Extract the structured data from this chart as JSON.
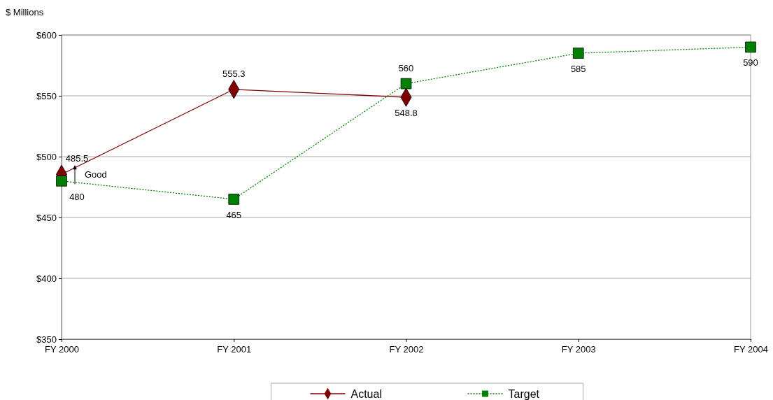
{
  "chart_data": {
    "type": "line",
    "ylabel": "$ Millions",
    "categories": [
      "FY 2000",
      "FY 2001",
      "FY 2002",
      "FY 2003",
      "FY 2004"
    ],
    "series": [
      {
        "name": "Actual",
        "color": "#800000",
        "marker": "diamond",
        "line_style": "solid",
        "values": [
          485.5,
          555.3,
          548.8,
          null,
          null
        ]
      },
      {
        "name": "Target",
        "color": "#008000",
        "marker": "square",
        "line_style": "dotted",
        "values": [
          480,
          465,
          560,
          585,
          590
        ]
      }
    ],
    "ylim": [
      350,
      600
    ],
    "yticks": [
      {
        "value": 350,
        "label": "$350"
      },
      {
        "value": 400,
        "label": "$400"
      },
      {
        "value": 450,
        "label": "$450"
      },
      {
        "value": 500,
        "label": "$500"
      },
      {
        "value": 550,
        "label": "$550"
      },
      {
        "value": 600,
        "label": "$600"
      }
    ],
    "grid": "y",
    "legend": "bottom",
    "data_labels": true,
    "annotations": [
      {
        "text": "Good",
        "x": "FY 2000",
        "y": 482
      }
    ]
  }
}
